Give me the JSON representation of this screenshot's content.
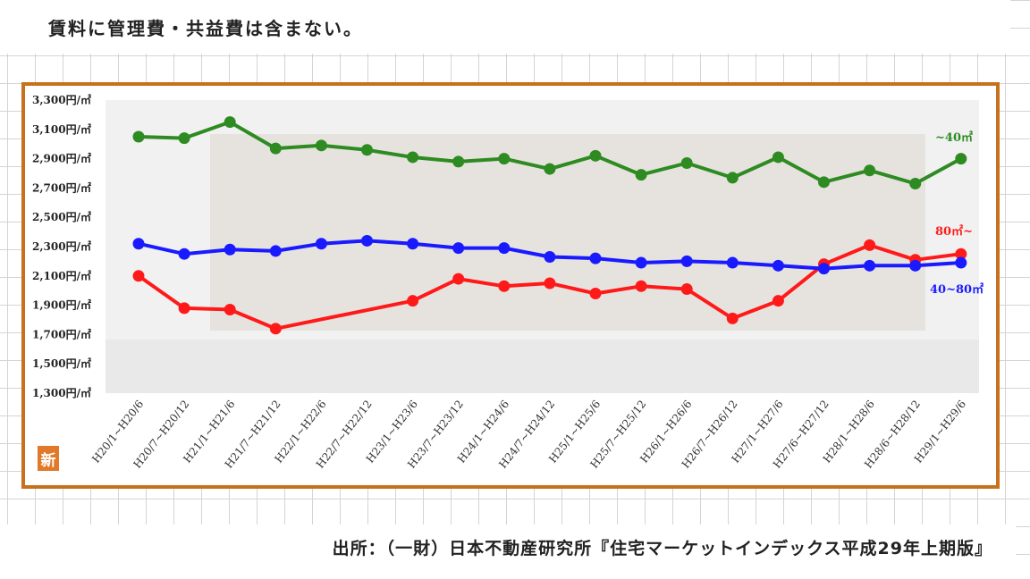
{
  "note": "賃料に管理費・共益費は含まない。",
  "source": "出所：（一財）日本不動産研究所『住宅マーケットインデックス平成29年上期版』",
  "badge": "新",
  "chart_data": {
    "type": "line",
    "categories": [
      "H20/1~H20/6",
      "H20/7~H20/12",
      "H21/1~H21/6",
      "H21/7~H21/12",
      "H22/1~H22/6",
      "H22/7~H22/12",
      "H23/1~H23/6",
      "H23/7~H23/12",
      "H24/1~H24/6",
      "H24/7~H24/12",
      "H25/1~H25/6",
      "H25/7~H25/12",
      "H26/1~H26/6",
      "H26/7~H26/12",
      "H27/1~H27/6",
      "H27/6~H27/12",
      "H28/1~H28/6",
      "H28/6~H28/12",
      "H29/1~H29/6"
    ],
    "y_ticks": [
      "3,300円/㎡",
      "3,100円/㎡",
      "2,900円/㎡",
      "2,700円/㎡",
      "2,500円/㎡",
      "2,300円/㎡",
      "2,100円/㎡",
      "1,900円/㎡",
      "1,700円/㎡",
      "1,500円/㎡",
      "1,300円/㎡"
    ],
    "ylim": [
      1300,
      3300
    ],
    "series": [
      {
        "name": "~40㎡",
        "color": "#2e8b22",
        "values": [
          3050,
          3040,
          3150,
          2970,
          2990,
          2960,
          2910,
          2880,
          2900,
          2830,
          2920,
          2790,
          2870,
          2770,
          2910,
          2740,
          2820,
          2730,
          2900
        ]
      },
      {
        "name": "80㎡~",
        "color": "#ff1a1a",
        "values": [
          2100,
          1880,
          1870,
          1740,
          null,
          null,
          1930,
          2080,
          2030,
          2050,
          1980,
          2030,
          2010,
          1810,
          1930,
          2180,
          2310,
          2210,
          2250
        ]
      },
      {
        "name": "40~80㎡",
        "color": "#1a1aff",
        "values": [
          2320,
          2250,
          2280,
          2270,
          2320,
          2340,
          2320,
          2290,
          2290,
          2230,
          2220,
          2190,
          2200,
          2190,
          2170,
          2150,
          2170,
          2170,
          2190
        ]
      }
    ]
  }
}
